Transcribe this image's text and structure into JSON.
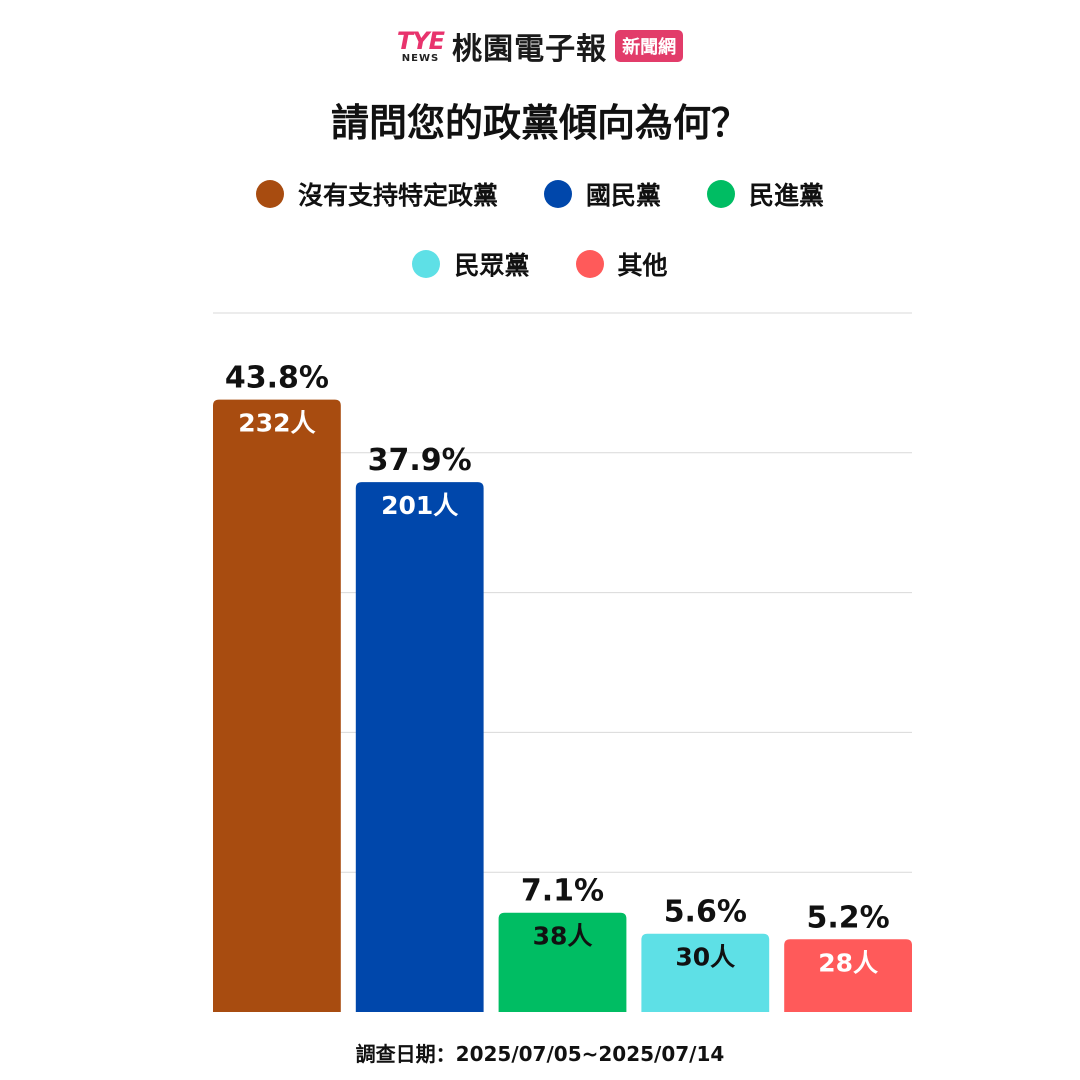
{
  "header": {
    "logo_mark": "TYE",
    "logo_news": "NEWS",
    "logo_name": "桃園電子報",
    "logo_badge": "新聞網"
  },
  "footer": {
    "survey_date": "調查日期：2025/07/05~2025/07/14"
  },
  "chart_data": {
    "type": "bar",
    "title": "請問您的政黨傾向為何？",
    "categories": [
      "沒有支持特定政黨",
      "國民黨",
      "民進黨",
      "民眾黨",
      "其他"
    ],
    "values": [
      43.8,
      37.9,
      7.1,
      5.6,
      5.2
    ],
    "value_labels": [
      "43.8%",
      "37.9%",
      "7.1%",
      "5.6%",
      "5.2%"
    ],
    "counts": [
      "232人",
      "201人",
      "38人",
      "30人",
      "28人"
    ],
    "colors": [
      "#a84c10",
      "#0047ab",
      "#00bd63",
      "#5ee0e6",
      "#ff5a5a"
    ],
    "count_label_colors": [
      "#ffffff",
      "#ffffff",
      "#111111",
      "#111111",
      "#ffffff"
    ],
    "ylim": [
      0,
      50
    ],
    "grid": true,
    "legend": "top-center",
    "xlabel": "",
    "ylabel": ""
  }
}
